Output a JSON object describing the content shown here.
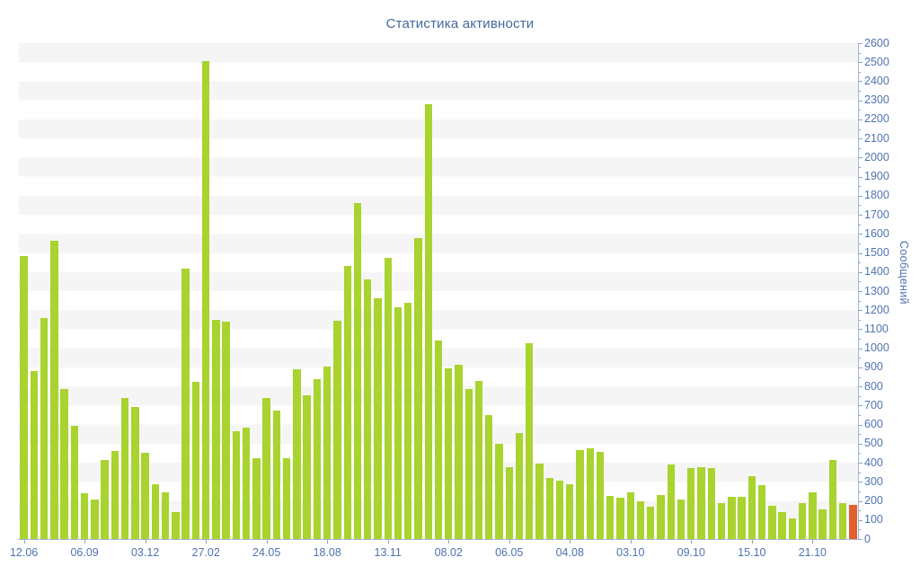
{
  "title": "Статистика активности",
  "colors": {
    "bar": "#a9d32e",
    "bar_highlight": "#e0612d",
    "title_text": "#44699c",
    "axis_text": "#4e73b0",
    "axis_line": "#a3b8d8",
    "tick_mark": "#8ba5c9",
    "stripe": "#f5f5f6",
    "background": "#ffffff"
  },
  "y_axis": {
    "title": "Сообщений",
    "min": 0,
    "max": 2600,
    "tick_step": 100,
    "minor_tick_step": 50,
    "tick_labels": [
      "0",
      "100",
      "200",
      "300",
      "400",
      "500",
      "600",
      "700",
      "800",
      "900",
      "1000",
      "1100",
      "1200",
      "1300",
      "1400",
      "1500",
      "1600",
      "1700",
      "1800",
      "1900",
      "2000",
      "2100",
      "2200",
      "2300",
      "2400",
      "2500",
      "2600"
    ]
  },
  "x_axis": {
    "tick_labels": [
      "12.06",
      "06.09",
      "03.12",
      "27.02",
      "24.05",
      "18.08",
      "13.11",
      "08.02",
      "06.05",
      "04.08",
      "03.10",
      "09.10",
      "15.10",
      "21.10"
    ],
    "label_every_n_bars": 6
  },
  "chart_data": {
    "type": "bar",
    "title": "Статистика активности",
    "xlabel": "",
    "ylabel": "Сообщений",
    "ylim": [
      0,
      2600
    ],
    "grid": "horizontal-stripes",
    "legend": "none",
    "x_tick_labels": [
      "12.06",
      "06.09",
      "03.12",
      "27.02",
      "24.05",
      "18.08",
      "13.11",
      "08.02",
      "06.05",
      "04.08",
      "03.10",
      "09.10",
      "15.10",
      "21.10"
    ],
    "x_tick_bar_indices": [
      0,
      6,
      12,
      18,
      24,
      30,
      36,
      42,
      48,
      54,
      60,
      66,
      72,
      78
    ],
    "values": [
      1485,
      880,
      1158,
      1563,
      787,
      593,
      240,
      207,
      413,
      463,
      741,
      694,
      451,
      287,
      243,
      141,
      1417,
      825,
      2505,
      1150,
      1138,
      565,
      585,
      424,
      741,
      675,
      424,
      890,
      755,
      840,
      905,
      1145,
      1433,
      1763,
      1361,
      1264,
      1476,
      1214,
      1240,
      1580,
      2280,
      1040,
      895,
      915,
      785,
      830,
      652,
      500,
      375,
      555,
      1025,
      396,
      319,
      306,
      286,
      465,
      477,
      458,
      228,
      217,
      245,
      198,
      170,
      230,
      390,
      205,
      370,
      375,
      370,
      190,
      220,
      220,
      330,
      285,
      175,
      140,
      110,
      190,
      245,
      155,
      415,
      190,
      180
    ],
    "highlight_last_bar": true
  }
}
